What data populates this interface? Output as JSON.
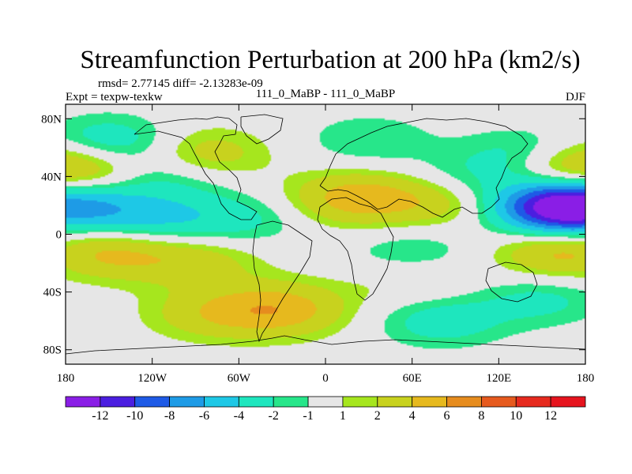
{
  "chart_data": {
    "type": "heatmap",
    "title": "Streamfunction Perturbation at 200 hPa (km2/s)",
    "stats_line": "rmsd= 2.77145 diff= -2.13283e-09",
    "left_label": "Expt = texpw-texkw",
    "center_label": "111_0_MaBP - 111_0_MaBP",
    "right_label": "DJF",
    "x_axis": {
      "range": [
        -180,
        180
      ],
      "ticks": [
        -180,
        -120,
        -60,
        0,
        60,
        120,
        180
      ],
      "tick_labels": [
        "180",
        "120W",
        "60W",
        "0",
        "60E",
        "120E",
        "180"
      ]
    },
    "y_axis": {
      "range": [
        -90,
        90
      ],
      "ticks": [
        80,
        40,
        0,
        -40,
        -80
      ],
      "tick_labels": [
        "80N",
        "40N",
        "0",
        "40S",
        "80S"
      ]
    },
    "colorbar": {
      "labels": [
        "-12",
        "-10",
        "-8",
        "-6",
        "-4",
        "-2",
        "-1",
        "1",
        "2",
        "4",
        "6",
        "8",
        "10",
        "12"
      ],
      "levels": [
        -12,
        -10,
        -8,
        -6,
        -4,
        -2,
        -1,
        1,
        2,
        4,
        6,
        8,
        10,
        12
      ],
      "colors": [
        "#8a1ee6",
        "#4b1ee0",
        "#1e5ae6",
        "#1e9be6",
        "#1ec8e6",
        "#1ee6be",
        "#27e68a",
        "#e6e6e6",
        "#a6e61e",
        "#c8d21e",
        "#e6b91e",
        "#e68c1e",
        "#e65a1e",
        "#e62a1e",
        "#e6141e"
      ]
    },
    "features": [
      {
        "lon": -180,
        "lat": 20,
        "amp": -7.5
      },
      {
        "lon": 180,
        "lat": 20,
        "amp": -7.5
      },
      {
        "lon": 163,
        "lat": 18,
        "amp": -10.5
      },
      {
        "lon": -175,
        "lat": 45,
        "amp": 6
      },
      {
        "lon": 175,
        "lat": 45,
        "amp": 6
      },
      {
        "lon": -150,
        "lat": 63,
        "amp": -4
      },
      {
        "lon": -85,
        "lat": 55,
        "amp": 3.5
      },
      {
        "lon": -110,
        "lat": 40,
        "amp": -2.5
      },
      {
        "lon": 20,
        "lat": 25,
        "amp": 5
      },
      {
        "lon": 80,
        "lat": 25,
        "amp": 4
      },
      {
        "lon": 95,
        "lat": 35,
        "amp": -3
      },
      {
        "lon": 140,
        "lat": 55,
        "amp": -3
      },
      {
        "lon": -120,
        "lat": 10,
        "amp": -4
      },
      {
        "lon": -60,
        "lat": 10,
        "amp": -2.5
      },
      {
        "lon": -150,
        "lat": -12,
        "amp": 4.5
      },
      {
        "lon": -90,
        "lat": -18,
        "amp": 3
      },
      {
        "lon": 60,
        "lat": -15,
        "amp": -2.5
      },
      {
        "lon": 165,
        "lat": -12,
        "amp": 5
      },
      {
        "lon": -30,
        "lat": -52,
        "amp": 5
      },
      {
        "lon": -80,
        "lat": -55,
        "amp": 3
      },
      {
        "lon": 80,
        "lat": -60,
        "amp": -3
      },
      {
        "lon": 150,
        "lat": -45,
        "amp": -2.5
      },
      {
        "lon": 30,
        "lat": 65,
        "amp": -2
      },
      {
        "lon": 60,
        "lat": -30,
        "amp": 2
      }
    ],
    "grid": false
  }
}
